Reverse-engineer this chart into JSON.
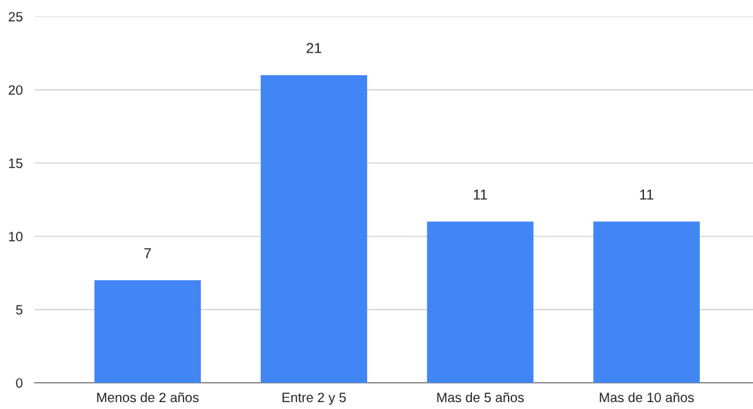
{
  "chart_data": {
    "type": "bar",
    "categories": [
      "Menos de 2 años",
      "Entre 2 y 5",
      "Mas de 5 años",
      "Mas de 10 años"
    ],
    "values": [
      7,
      21,
      11,
      11
    ],
    "color": "#4285f4",
    "ylim": [
      0,
      25
    ],
    "yticks": [
      0,
      5,
      10,
      15,
      20,
      25
    ],
    "grid": "y",
    "data_labels": true
  }
}
